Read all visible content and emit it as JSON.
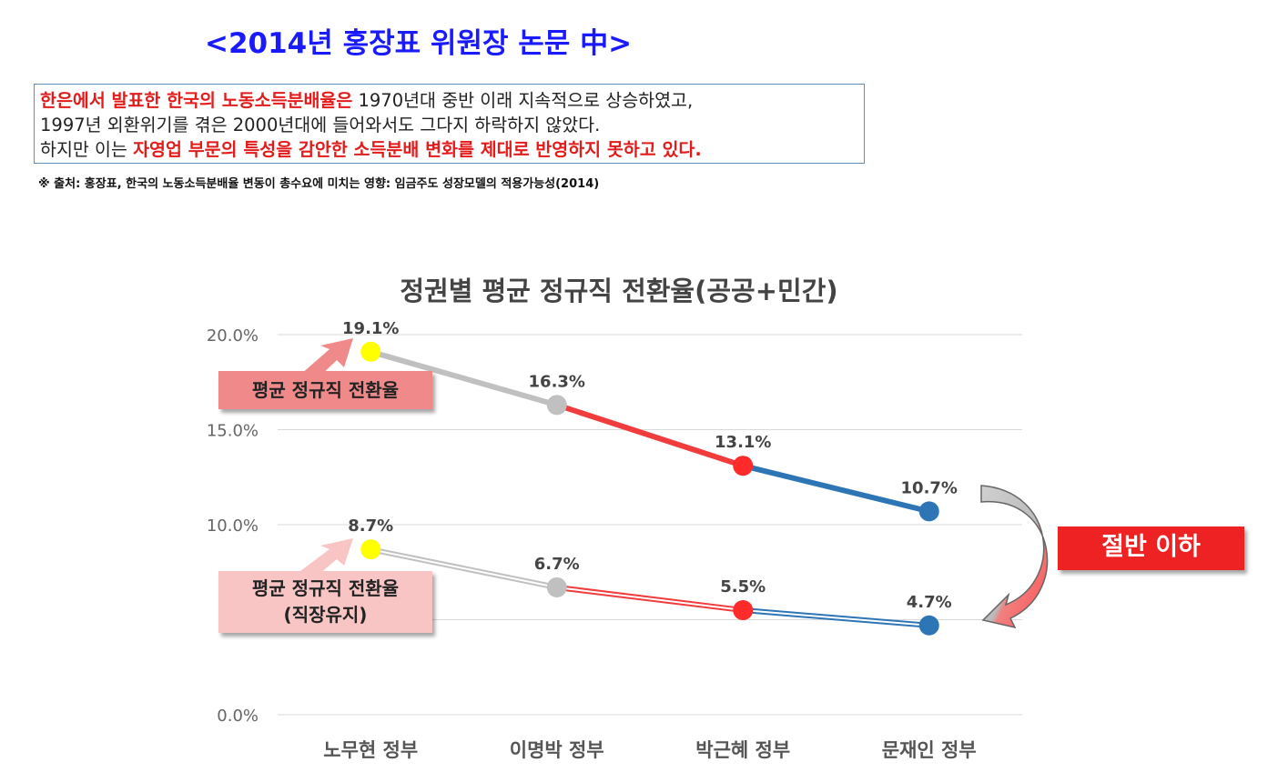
{
  "heading": "<2014년 홍장표 위원장 논문 中>",
  "box": {
    "line1_red": "한은에서 발표한 한국의 노동소득분배율은",
    "line1_rest": " 1970년대 중반 이래 지속적으로 상승하였고,",
    "line2": "1997년 외환위기를 겪은 2000년대에 들어와서도 그다지 하락하지 않았다.",
    "line3_start": "하지만 이는 ",
    "line3_red": "자영업 부문의 특성을 감안한 소득분배 변화를 제대로 반영하지 못하고 있다."
  },
  "source": "※ 출처: 홍장표, 한국의 노동소득분배율 변동이 총수요에 미치는 영향: 임금주도 성장모델의 적용가능성(2014)",
  "chart_data": {
    "type": "line",
    "title": "정권별 평균 정규직 전환율(공공+민간)",
    "categories": [
      "노무현 정부",
      "이명박 정부",
      "박근혜 정부",
      "문재인 정부"
    ],
    "ylim": [
      0,
      20
    ],
    "yticks": [
      {
        "value": 20,
        "label": "20.0%"
      },
      {
        "value": 15,
        "label": "15.0%"
      },
      {
        "value": 10,
        "label": "10.0%"
      },
      {
        "value": 5,
        "label": ""
      },
      {
        "value": 0,
        "label": "0.0%"
      }
    ],
    "grid": true,
    "point_colors": [
      "#ffff00",
      "#c0c0c0",
      "#ff2a2a",
      "#2e75b6"
    ],
    "series": [
      {
        "name": "평균 정규직 전환율",
        "values": [
          19.1,
          16.3,
          13.1,
          10.7
        ],
        "labels": [
          "19.1%",
          "16.3%",
          "13.1%",
          "10.7%"
        ],
        "style": "solid"
      },
      {
        "name": "평균 정규직 전환율\n(직장유지)",
        "values": [
          8.7,
          6.7,
          5.5,
          4.7
        ],
        "labels": [
          "8.7%",
          "6.7%",
          "5.5%",
          "4.7%"
        ],
        "style": "double"
      }
    ],
    "annotations": {
      "callout1": "평균 정규직 전환율",
      "callout2_line1": "평균 정규직 전환율",
      "callout2_line2": "(직장유지)",
      "halving": "절반 이하"
    }
  }
}
